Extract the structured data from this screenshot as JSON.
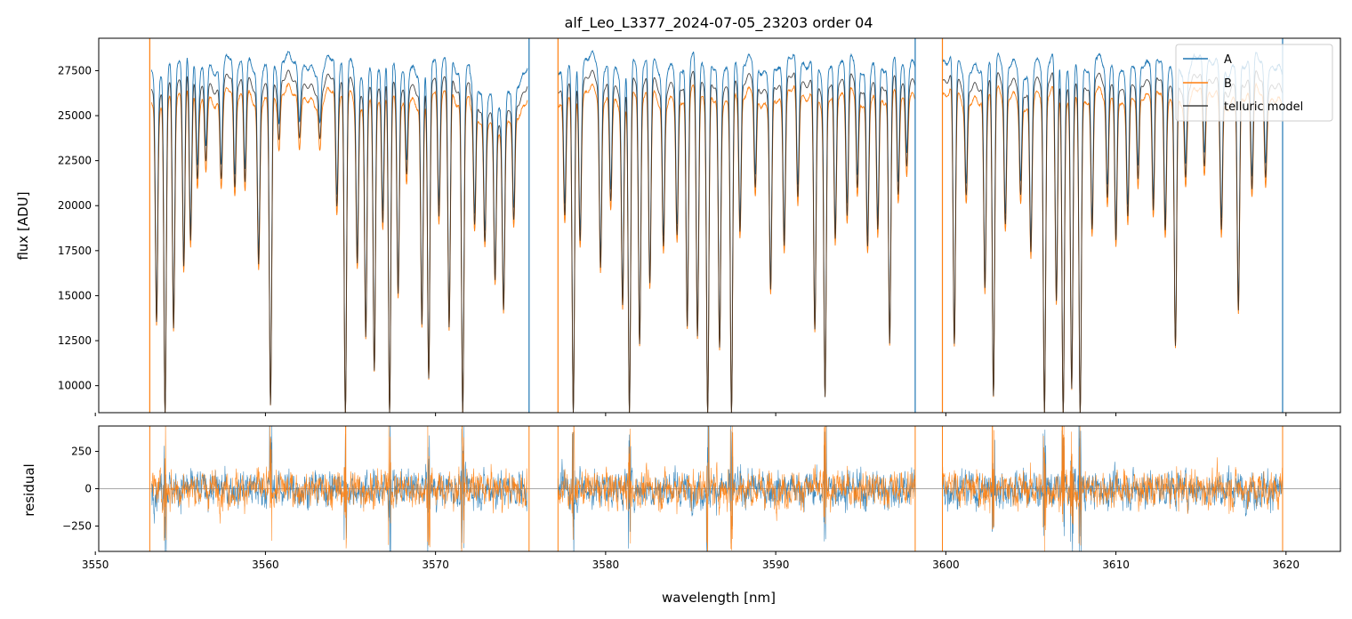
{
  "chart_data": [
    {
      "type": "line",
      "panel": "flux",
      "title": "alf_Leo_L3377_2024-07-05_23203  order 04",
      "xlabel": "",
      "ylabel": "flux [ADU]",
      "xlim": [
        3550.2,
        3623.2
      ],
      "ylim": [
        8500,
        29300
      ],
      "yticks": [
        "10000",
        "12500",
        "15000",
        "17500",
        "20000",
        "22500",
        "25000",
        "27500"
      ],
      "yticks_values": [
        10000,
        12500,
        15000,
        17500,
        20000,
        22500,
        25000,
        27500
      ],
      "xticks_values": [
        3550,
        3560,
        3570,
        3580,
        3590,
        3600,
        3610,
        3620
      ],
      "grid": false,
      "legend_position": "top-right",
      "series": [
        {
          "name": "A",
          "color": "#1f77b4",
          "continuum": 27800
        },
        {
          "name": "B",
          "color": "#ff7f0e",
          "continuum": 26000
        },
        {
          "name": "telluric model",
          "color": "#404040"
        }
      ],
      "segments": [
        [
          3553.3,
          3575.4
        ],
        [
          3577.2,
          3598.2
        ],
        [
          3599.8,
          3619.8
        ]
      ],
      "gaps": [
        [
          3575.4,
          3577.2
        ],
        [
          3598.2,
          3599.8
        ]
      ],
      "edge_spikes": [
        3553.2,
        3575.5,
        3577.2,
        3598.2,
        3599.8,
        3619.8
      ],
      "absorption_lines": [
        {
          "x": 3553.6,
          "y": 14000
        },
        {
          "x": 3554.1,
          "y": 8500
        },
        {
          "x": 3554.6,
          "y": 13500
        },
        {
          "x": 3555.2,
          "y": 17000
        },
        {
          "x": 3555.6,
          "y": 18500
        },
        {
          "x": 3556.0,
          "y": 22500
        },
        {
          "x": 3556.5,
          "y": 23500
        },
        {
          "x": 3557.4,
          "y": 22500
        },
        {
          "x": 3558.2,
          "y": 21500
        },
        {
          "x": 3558.8,
          "y": 22000
        },
        {
          "x": 3559.6,
          "y": 17500
        },
        {
          "x": 3560.3,
          "y": 9000
        },
        {
          "x": 3560.8,
          "y": 24500
        },
        {
          "x": 3562.0,
          "y": 25000
        },
        {
          "x": 3563.2,
          "y": 24800
        },
        {
          "x": 3564.2,
          "y": 20500
        },
        {
          "x": 3564.7,
          "y": 8500
        },
        {
          "x": 3565.4,
          "y": 17500
        },
        {
          "x": 3565.9,
          "y": 13000
        },
        {
          "x": 3566.4,
          "y": 11000
        },
        {
          "x": 3566.9,
          "y": 19500
        },
        {
          "x": 3567.3,
          "y": 8500
        },
        {
          "x": 3567.8,
          "y": 15500
        },
        {
          "x": 3568.3,
          "y": 22500
        },
        {
          "x": 3569.2,
          "y": 13800
        },
        {
          "x": 3569.6,
          "y": 10500
        },
        {
          "x": 3570.2,
          "y": 20000
        },
        {
          "x": 3570.8,
          "y": 13500
        },
        {
          "x": 3571.6,
          "y": 8500
        },
        {
          "x": 3572.3,
          "y": 20000
        },
        {
          "x": 3572.9,
          "y": 19500
        },
        {
          "x": 3573.5,
          "y": 17500
        },
        {
          "x": 3574.0,
          "y": 15500
        },
        {
          "x": 3574.6,
          "y": 20500
        },
        {
          "x": 3577.6,
          "y": 20500
        },
        {
          "x": 3578.1,
          "y": 8500
        },
        {
          "x": 3578.5,
          "y": 18800
        },
        {
          "x": 3579.7,
          "y": 17000
        },
        {
          "x": 3580.3,
          "y": 21000
        },
        {
          "x": 3581.0,
          "y": 15000
        },
        {
          "x": 3581.4,
          "y": 8500
        },
        {
          "x": 3582.0,
          "y": 12500
        },
        {
          "x": 3582.6,
          "y": 16000
        },
        {
          "x": 3583.4,
          "y": 18500
        },
        {
          "x": 3584.2,
          "y": 19000
        },
        {
          "x": 3584.8,
          "y": 13500
        },
        {
          "x": 3585.4,
          "y": 13000
        },
        {
          "x": 3586.0,
          "y": 8500
        },
        {
          "x": 3586.7,
          "y": 12500
        },
        {
          "x": 3587.4,
          "y": 8500
        },
        {
          "x": 3587.9,
          "y": 19000
        },
        {
          "x": 3588.8,
          "y": 21500
        },
        {
          "x": 3589.7,
          "y": 15800
        },
        {
          "x": 3590.5,
          "y": 18500
        },
        {
          "x": 3591.3,
          "y": 21000
        },
        {
          "x": 3592.3,
          "y": 13500
        },
        {
          "x": 3592.9,
          "y": 9500
        },
        {
          "x": 3593.5,
          "y": 18500
        },
        {
          "x": 3594.2,
          "y": 20000
        },
        {
          "x": 3594.8,
          "y": 21500
        },
        {
          "x": 3595.4,
          "y": 18500
        },
        {
          "x": 3596.0,
          "y": 19500
        },
        {
          "x": 3596.7,
          "y": 12500
        },
        {
          "x": 3597.2,
          "y": 21000
        },
        {
          "x": 3597.7,
          "y": 23000
        },
        {
          "x": 3600.5,
          "y": 12500
        },
        {
          "x": 3601.2,
          "y": 21500
        },
        {
          "x": 3602.3,
          "y": 16000
        },
        {
          "x": 3602.8,
          "y": 9500
        },
        {
          "x": 3603.5,
          "y": 19500
        },
        {
          "x": 3604.4,
          "y": 21500
        },
        {
          "x": 3605.0,
          "y": 18000
        },
        {
          "x": 3605.8,
          "y": 8500
        },
        {
          "x": 3606.5,
          "y": 15000
        },
        {
          "x": 3606.9,
          "y": 8500
        },
        {
          "x": 3607.4,
          "y": 10000
        },
        {
          "x": 3607.9,
          "y": 8500
        },
        {
          "x": 3608.6,
          "y": 19000
        },
        {
          "x": 3609.5,
          "y": 21000
        },
        {
          "x": 3610.0,
          "y": 18500
        },
        {
          "x": 3610.7,
          "y": 20500
        },
        {
          "x": 3611.3,
          "y": 22000
        },
        {
          "x": 3612.2,
          "y": 20000
        },
        {
          "x": 3612.9,
          "y": 19500
        },
        {
          "x": 3613.5,
          "y": 12500
        },
        {
          "x": 3614.1,
          "y": 22500
        },
        {
          "x": 3615.2,
          "y": 23000
        },
        {
          "x": 3616.2,
          "y": 19500
        },
        {
          "x": 3617.2,
          "y": 14500
        },
        {
          "x": 3618.0,
          "y": 21500
        },
        {
          "x": 3618.8,
          "y": 22500
        }
      ]
    },
    {
      "type": "line",
      "panel": "residual",
      "title": "",
      "xlabel": "wavelength [nm]",
      "ylabel": "residual",
      "xlim": [
        3550.2,
        3623.2
      ],
      "ylim": [
        -420,
        420
      ],
      "xticks": [
        "3550",
        "3560",
        "3570",
        "3580",
        "3590",
        "3600",
        "3610",
        "3620"
      ],
      "xticks_values": [
        3550,
        3560,
        3570,
        3580,
        3590,
        3600,
        3610,
        3620
      ],
      "yticks": [
        "−250",
        "0",
        "250"
      ],
      "yticks_values": [
        -250,
        0,
        250
      ],
      "reference_line": 0,
      "grid": false,
      "series": [
        {
          "name": "A",
          "color": "#1f77b4"
        },
        {
          "name": "B",
          "color": "#ff7f0e"
        }
      ],
      "residual_rms": 110
    }
  ]
}
